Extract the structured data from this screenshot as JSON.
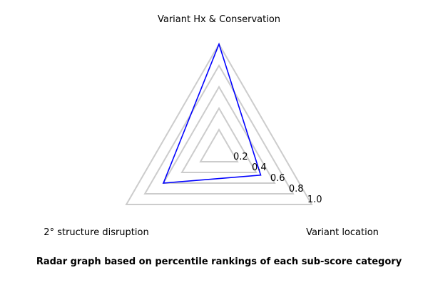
{
  "chart_data": {
    "type": "radar",
    "axes": [
      "Variant Hx & Conservation",
      "Variant location",
      "2° structure disruption"
    ],
    "rlim": [
      0,
      1.0
    ],
    "ticks": [
      0.2,
      0.4,
      0.6,
      0.8,
      1.0
    ],
    "tick_labels": [
      "0.2",
      "0.4",
      "0.6",
      "0.8",
      "1.0"
    ],
    "series": [
      {
        "values": [
          1.0,
          0.45,
          0.6
        ],
        "color": "#0000ff"
      }
    ],
    "grid": true,
    "grid_color": "#cccccc",
    "caption": "Radar graph based on percentile rankings of each sub-score category"
  }
}
